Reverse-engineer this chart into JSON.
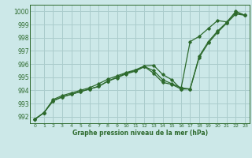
{
  "title": "Graphe pression niveau de la mer (hPa)",
  "bg_color": "#cce8e8",
  "grid_color": "#aacccc",
  "line_color": "#2d6a2d",
  "xlim": [
    -0.5,
    23.5
  ],
  "ylim": [
    991.5,
    1000.5
  ],
  "yticks": [
    992,
    993,
    994,
    995,
    996,
    997,
    998,
    999,
    1000
  ],
  "xticks": [
    0,
    1,
    2,
    3,
    4,
    5,
    6,
    7,
    8,
    9,
    10,
    11,
    12,
    13,
    14,
    15,
    16,
    17,
    18,
    19,
    20,
    21,
    22,
    23
  ],
  "series1_x": [
    0,
    1,
    2,
    3,
    4,
    5,
    6,
    7,
    8,
    9,
    10,
    11,
    12,
    13,
    14,
    15,
    16,
    17,
    18,
    19,
    20,
    21,
    22,
    23
  ],
  "series1_y": [
    991.8,
    992.3,
    993.2,
    993.5,
    993.7,
    993.9,
    994.1,
    994.3,
    994.7,
    995.0,
    995.3,
    995.5,
    995.8,
    995.5,
    994.8,
    994.5,
    994.2,
    994.1,
    996.5,
    997.6,
    998.4,
    999.1,
    999.8,
    999.7
  ],
  "series2_x": [
    0,
    1,
    2,
    3,
    4,
    5,
    6,
    7,
    8,
    9,
    10,
    11,
    12,
    13,
    14,
    15,
    16,
    17,
    18,
    19,
    20,
    21,
    22,
    23
  ],
  "series2_y": [
    991.8,
    992.3,
    993.3,
    993.6,
    993.8,
    994.0,
    994.2,
    994.5,
    994.85,
    995.1,
    995.35,
    995.55,
    995.85,
    995.9,
    995.2,
    994.8,
    994.1,
    997.7,
    998.1,
    998.7,
    999.3,
    999.2,
    999.9,
    999.7
  ],
  "series3_x": [
    0,
    1,
    2,
    3,
    4,
    5,
    6,
    7,
    8,
    9,
    10,
    11,
    12,
    13,
    14,
    15,
    16,
    17,
    18,
    19,
    20,
    21,
    22,
    23
  ],
  "series3_y": [
    991.8,
    992.3,
    993.2,
    993.5,
    993.7,
    993.9,
    994.1,
    994.3,
    994.7,
    994.95,
    995.25,
    995.45,
    995.8,
    995.3,
    994.6,
    994.45,
    994.1,
    994.1,
    996.6,
    997.7,
    998.5,
    999.15,
    1000.0,
    999.7
  ]
}
